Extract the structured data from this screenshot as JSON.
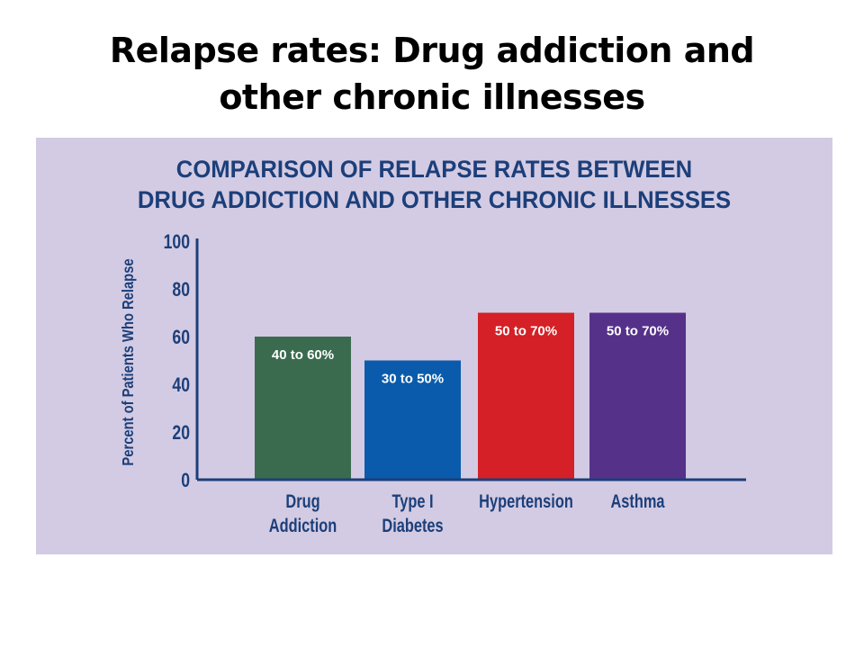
{
  "slide": {
    "title_line1": "Relapse rates: Drug addiction and",
    "title_line2": "other chronic illnesses"
  },
  "chart_data": {
    "type": "bar",
    "title_line1": "COMPARISON OF RELAPSE RATES BETWEEN",
    "title_line2": "DRUG ADDICTION AND OTHER CHRONIC ILLNESSES",
    "ylabel": "Percent of Patients Who Relapse",
    "xlabel": "",
    "ylim": [
      0,
      100
    ],
    "yticks": [
      "0",
      "20",
      "40",
      "60",
      "80",
      "100"
    ],
    "grid": false,
    "categories": [
      {
        "line1": "Drug",
        "line2": "Addiction"
      },
      {
        "line1": "Type I",
        "line2": "Diabetes"
      },
      {
        "line1": "Hypertension",
        "line2": ""
      },
      {
        "line1": "Asthma",
        "line2": ""
      }
    ],
    "values": [
      60,
      50,
      70,
      70
    ],
    "range_low": [
      40,
      30,
      50,
      50
    ],
    "data_labels": [
      "40 to 60%",
      "30 to 50%",
      "50 to 70%",
      "50 to 70%"
    ],
    "colors": [
      "#3a6b4f",
      "#0a5bab",
      "#d42026",
      "#56318a"
    ],
    "axis_color": "#1c3f7a",
    "label_color": "#1c3f7a",
    "background": "#d3cbe3"
  }
}
